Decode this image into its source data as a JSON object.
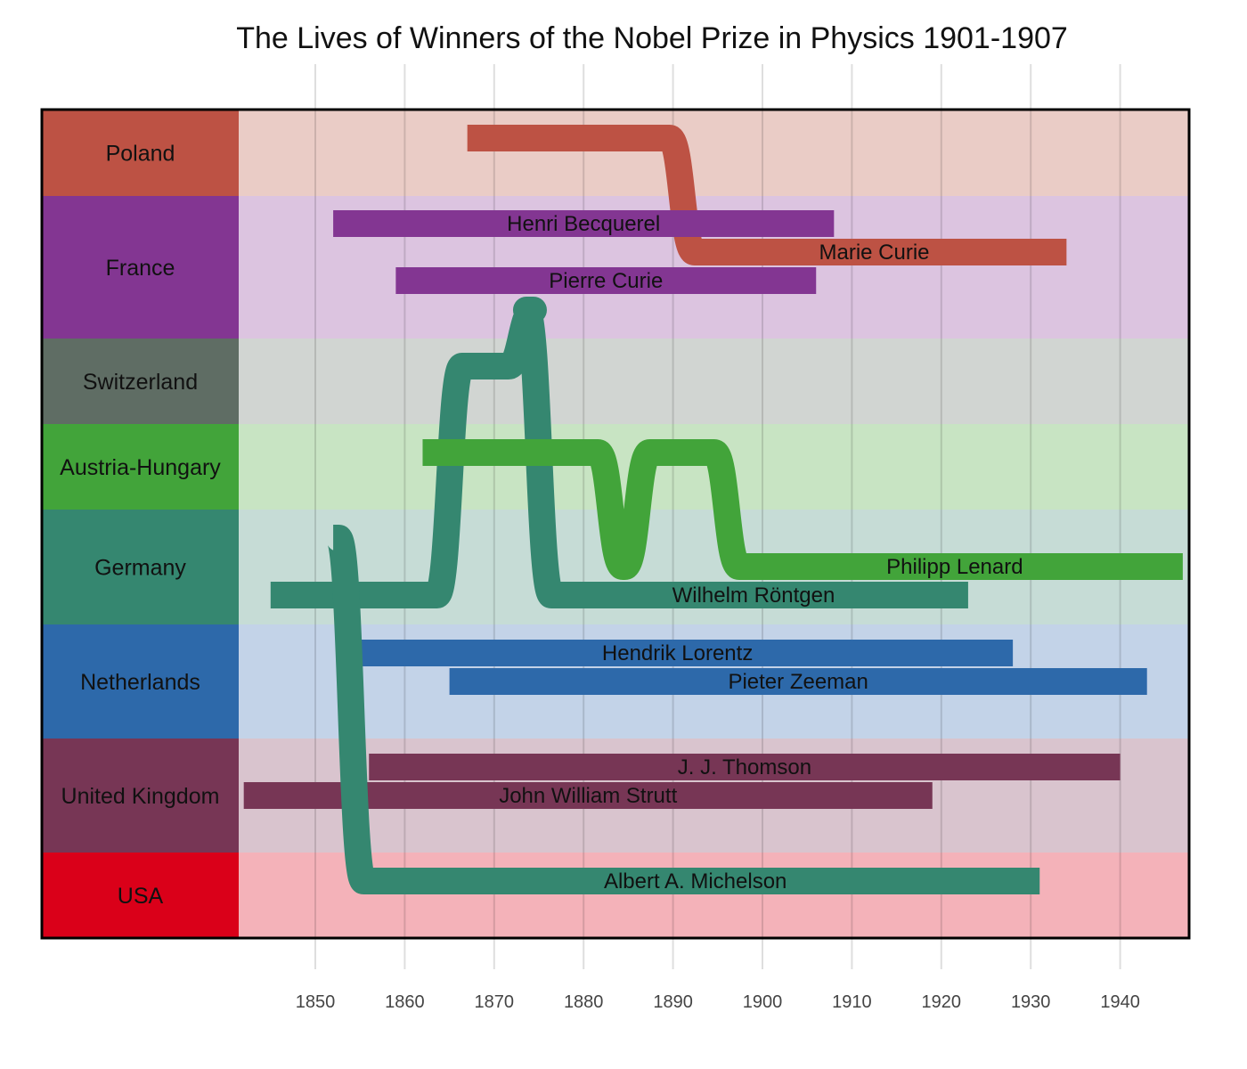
{
  "chart_data": {
    "type": "timeline",
    "title": "The Lives of Winners of the Nobel Prize in Physics 1901-1907",
    "x_axis": {
      "ticks": [
        1850,
        1860,
        1870,
        1880,
        1890,
        1900,
        1910,
        1920,
        1930,
        1940
      ],
      "range": [
        1820,
        1948
      ],
      "grid": true
    },
    "countries": [
      {
        "name": "Poland",
        "color": "#BD5244",
        "bg": "#EACCC6"
      },
      {
        "name": "France",
        "color": "#833692",
        "bg": "#DCC4E0"
      },
      {
        "name": "Switzerland",
        "color": "#5F6D64",
        "bg": "#D1D5D2"
      },
      {
        "name": "Austria-Hungary",
        "color": "#42A43A",
        "bg": "#C8E4C3"
      },
      {
        "name": "Germany",
        "color": "#358770",
        "bg": "#C6DCD6"
      },
      {
        "name": "Netherlands",
        "color": "#2D69AA",
        "bg": "#C3D3E8"
      },
      {
        "name": "United Kingdom",
        "color": "#773655",
        "bg": "#D9C4CE"
      },
      {
        "name": "USA",
        "color": "#DA0019",
        "bg": "#F4B2B9"
      }
    ],
    "people": [
      {
        "name": "Marie Curie",
        "born": 1867,
        "died": 1934,
        "color": "#BD5244",
        "segments": [
          {
            "country": "Poland",
            "start": 1867,
            "end": 1891
          },
          {
            "country": "France",
            "start": 1891,
            "end": 1934
          }
        ]
      },
      {
        "name": "Henri Becquerel",
        "born": 1852,
        "died": 1908,
        "color": "#833692",
        "segments": [
          {
            "country": "France",
            "start": 1852,
            "end": 1908
          }
        ]
      },
      {
        "name": "Pierre Curie",
        "born": 1859,
        "died": 1906,
        "color": "#833692",
        "segments": [
          {
            "country": "France",
            "start": 1859,
            "end": 1906
          }
        ]
      },
      {
        "name": "Wilhelm Röntgen",
        "born": 1845,
        "died": 1923,
        "color": "#358770",
        "segments": [
          {
            "country": "Germany",
            "start": 1845,
            "end": 1865
          },
          {
            "country": "Switzerland",
            "start": 1865,
            "end": 1873
          },
          {
            "country": "France",
            "start": 1873,
            "end": 1875
          },
          {
            "country": "Germany",
            "start": 1875,
            "end": 1923
          }
        ]
      },
      {
        "name": "Philipp Lenard",
        "born": 1862,
        "died": 1947,
        "color": "#42A43A",
        "segments": [
          {
            "country": "Austria-Hungary",
            "start": 1862,
            "end": 1883
          },
          {
            "country": "Germany",
            "start": 1883,
            "end": 1886
          },
          {
            "country": "Austria-Hungary",
            "start": 1886,
            "end": 1896
          },
          {
            "country": "Germany",
            "start": 1896,
            "end": 1947
          }
        ]
      },
      {
        "name": "Hendrik Lorentz",
        "born": 1853,
        "died": 1928,
        "color": "#2D69AA",
        "segments": [
          {
            "country": "Netherlands",
            "start": 1853,
            "end": 1928
          }
        ]
      },
      {
        "name": "Pieter Zeeman",
        "born": 1865,
        "died": 1943,
        "color": "#2D69AA",
        "segments": [
          {
            "country": "Netherlands",
            "start": 1865,
            "end": 1943
          }
        ]
      },
      {
        "name": "J. J. Thomson",
        "born": 1856,
        "died": 1940,
        "color": "#773655",
        "segments": [
          {
            "country": "United Kingdom",
            "start": 1856,
            "end": 1940
          }
        ]
      },
      {
        "name": "John William Strutt",
        "born": 1842,
        "died": 1919,
        "color": "#773655",
        "segments": [
          {
            "country": "United Kingdom",
            "start": 1842,
            "end": 1919
          }
        ]
      },
      {
        "name": "Albert A. Michelson",
        "born": 1852,
        "died": 1931,
        "color": "#358770",
        "segments": [
          {
            "country": "Germany",
            "start": 1852,
            "end": 1854
          },
          {
            "country": "USA",
            "start": 1854,
            "end": 1931
          }
        ]
      }
    ]
  }
}
